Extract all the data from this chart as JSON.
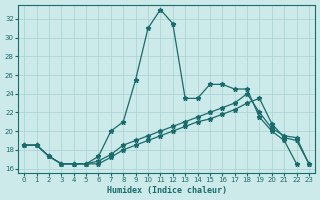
{
  "xlabel": "Humidex (Indice chaleur)",
  "background_color": "#cceaea",
  "grid_color": "#aad0d0",
  "line_color": "#1a6b6b",
  "xlim": [
    -0.5,
    23.5
  ],
  "ylim": [
    15.5,
    33.5
  ],
  "yticks": [
    16,
    18,
    20,
    22,
    24,
    26,
    28,
    30,
    32
  ],
  "xticks": [
    0,
    1,
    2,
    3,
    4,
    5,
    6,
    7,
    8,
    9,
    10,
    11,
    12,
    13,
    14,
    15,
    16,
    17,
    18,
    19,
    20,
    21,
    22,
    23
  ],
  "line1_x": [
    0,
    1,
    2,
    3,
    4,
    5,
    6,
    7,
    8,
    9,
    10,
    11,
    12,
    13,
    14,
    15,
    16,
    17,
    18,
    19,
    20,
    21,
    22
  ],
  "line1_y": [
    18.5,
    18.5,
    17.3,
    16.5,
    16.5,
    16.5,
    17.3,
    20.0,
    21.0,
    25.5,
    31.0,
    33.0,
    31.5,
    23.5,
    23.5,
    25.0,
    25.0,
    24.5,
    24.5,
    21.5,
    20.0,
    19.0,
    16.5
  ],
  "line2_x": [
    0,
    1,
    2,
    3,
    4,
    5,
    6,
    7,
    8,
    9,
    10,
    11,
    12,
    13,
    14,
    15,
    16,
    17,
    18,
    19,
    20,
    21,
    22,
    23
  ],
  "line2_y": [
    18.5,
    18.5,
    17.3,
    16.5,
    16.5,
    16.5,
    16.8,
    17.5,
    18.5,
    19.0,
    19.5,
    20.0,
    20.5,
    21.0,
    21.5,
    22.0,
    22.5,
    23.0,
    24.0,
    22.0,
    20.3,
    19.5,
    19.3,
    16.5
  ],
  "line3_x": [
    0,
    1,
    2,
    3,
    4,
    5,
    6,
    7,
    8,
    9,
    10,
    11,
    12,
    13,
    14,
    15,
    16,
    17,
    18,
    19,
    20,
    21,
    22,
    23
  ],
  "line3_y": [
    18.5,
    18.5,
    17.3,
    16.5,
    16.5,
    16.5,
    16.5,
    17.2,
    18.0,
    18.5,
    19.0,
    19.5,
    20.0,
    20.5,
    21.0,
    21.3,
    21.8,
    22.3,
    23.0,
    23.5,
    20.8,
    19.3,
    19.0,
    16.5
  ]
}
